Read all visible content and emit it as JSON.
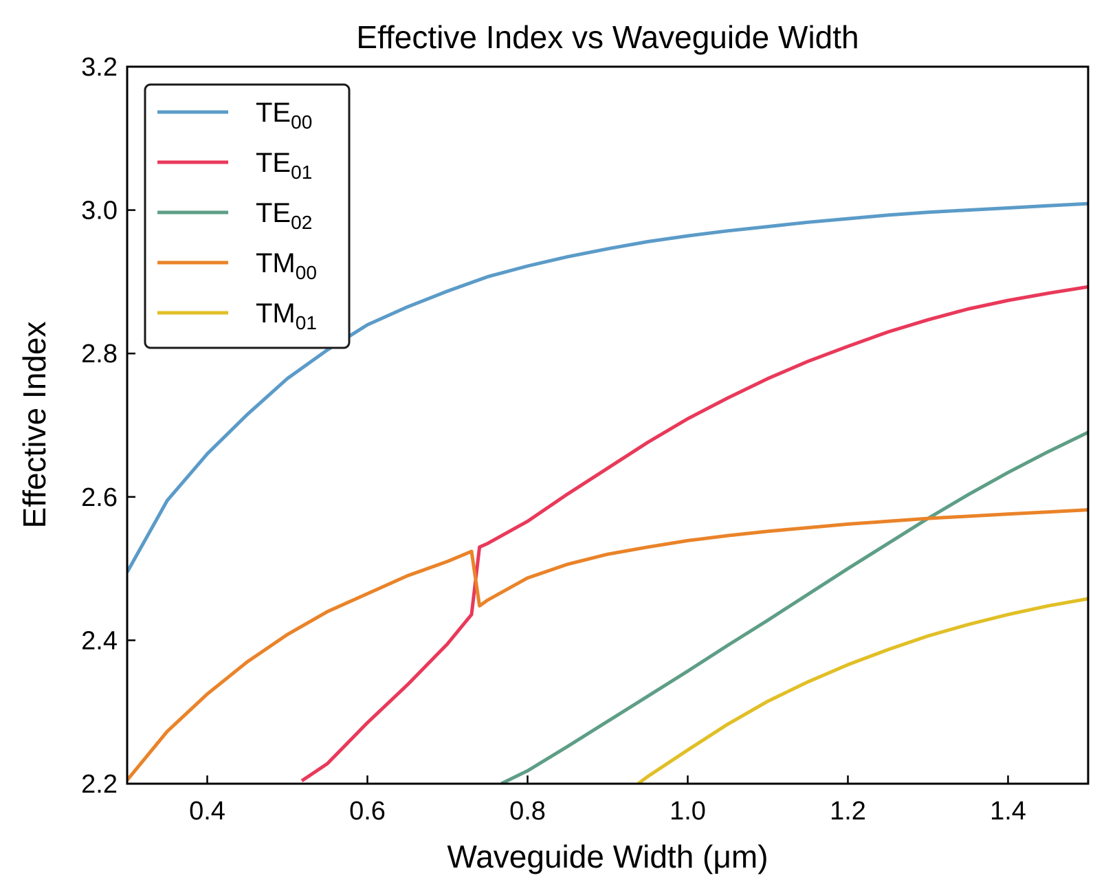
{
  "chart_data": {
    "type": "line",
    "title": "Effective Index vs Waveguide Width",
    "xlabel": "Waveguide Width (μm)",
    "ylabel": "Effective Index",
    "xlim": [
      0.3,
      1.5
    ],
    "ylim": [
      2.2,
      3.2
    ],
    "xticks": [
      0.4,
      0.6,
      0.8,
      1.0,
      1.2,
      1.4
    ],
    "xtick_labels": [
      "0.4",
      "0.6",
      "0.8",
      "1.0",
      "1.2",
      "1.4"
    ],
    "yticks": [
      2.2,
      2.4,
      2.6,
      2.8,
      3.0,
      3.2
    ],
    "ytick_labels": [
      "2.2",
      "2.4",
      "2.6",
      "2.8",
      "3.0",
      "3.2"
    ],
    "grid": false,
    "legend_position": "top-left",
    "series": [
      {
        "name": "TE",
        "sub": "00",
        "color": "#5b9bc8",
        "x": [
          0.3,
          0.35,
          0.4,
          0.45,
          0.5,
          0.55,
          0.6,
          0.65,
          0.7,
          0.75,
          0.8,
          0.85,
          0.9,
          0.95,
          1.0,
          1.05,
          1.1,
          1.15,
          1.2,
          1.25,
          1.3,
          1.35,
          1.4,
          1.45,
          1.5
        ],
        "y": [
          2.495,
          2.595,
          2.66,
          2.715,
          2.765,
          2.805,
          2.84,
          2.865,
          2.887,
          2.907,
          2.922,
          2.935,
          2.946,
          2.956,
          2.964,
          2.971,
          2.977,
          2.983,
          2.988,
          2.993,
          2.997,
          3.0,
          3.003,
          3.006,
          3.009
        ]
      },
      {
        "name": "TE",
        "sub": "01",
        "color": "#e9395a",
        "x": [
          0.518,
          0.55,
          0.6,
          0.65,
          0.7,
          0.73,
          0.74,
          0.75,
          0.8,
          0.85,
          0.9,
          0.95,
          1.0,
          1.05,
          1.1,
          1.15,
          1.2,
          1.25,
          1.3,
          1.35,
          1.4,
          1.45,
          1.5
        ],
        "y": [
          2.204,
          2.228,
          2.285,
          2.338,
          2.395,
          2.436,
          2.53,
          2.535,
          2.566,
          2.604,
          2.64,
          2.676,
          2.709,
          2.738,
          2.765,
          2.789,
          2.81,
          2.83,
          2.847,
          2.862,
          2.874,
          2.884,
          2.893
        ]
      },
      {
        "name": "TE",
        "sub": "02",
        "color": "#5e9e86",
        "x": [
          0.767,
          0.8,
          0.85,
          0.9,
          0.95,
          1.0,
          1.05,
          1.1,
          1.15,
          1.2,
          1.25,
          1.3,
          1.35,
          1.4,
          1.45,
          1.5
        ],
        "y": [
          2.2,
          2.218,
          2.252,
          2.287,
          2.322,
          2.357,
          2.393,
          2.428,
          2.464,
          2.5,
          2.535,
          2.57,
          2.603,
          2.634,
          2.663,
          2.69
        ]
      },
      {
        "name": "TM",
        "sub": "00",
        "color": "#ea8329",
        "x": [
          0.3,
          0.35,
          0.4,
          0.45,
          0.5,
          0.55,
          0.6,
          0.65,
          0.7,
          0.73,
          0.74,
          0.75,
          0.8,
          0.85,
          0.9,
          0.95,
          1.0,
          1.05,
          1.1,
          1.15,
          1.2,
          1.25,
          1.3,
          1.35,
          1.4,
          1.45,
          1.5
        ],
        "y": [
          2.205,
          2.273,
          2.325,
          2.37,
          2.408,
          2.44,
          2.465,
          2.49,
          2.51,
          2.524,
          2.448,
          2.456,
          2.487,
          2.506,
          2.52,
          2.53,
          2.539,
          2.546,
          2.552,
          2.557,
          2.562,
          2.566,
          2.57,
          2.573,
          2.576,
          2.579,
          2.582
        ]
      },
      {
        "name": "TM",
        "sub": "01",
        "color": "#e1bf26",
        "x": [
          0.938,
          0.95,
          1.0,
          1.05,
          1.1,
          1.15,
          1.2,
          1.25,
          1.3,
          1.35,
          1.4,
          1.45,
          1.5
        ],
        "y": [
          2.2,
          2.21,
          2.247,
          2.283,
          2.315,
          2.342,
          2.366,
          2.387,
          2.406,
          2.422,
          2.436,
          2.448,
          2.458
        ]
      }
    ]
  }
}
